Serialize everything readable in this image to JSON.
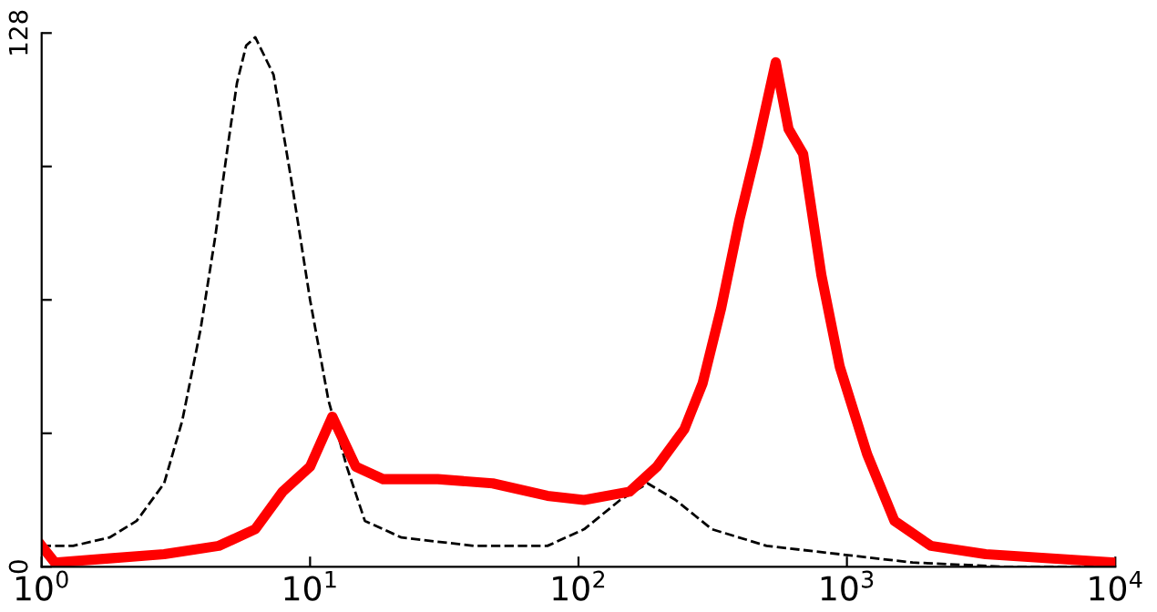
{
  "chart_data": {
    "type": "line",
    "log": "x",
    "xlim": [
      1,
      10000
    ],
    "ylim": [
      0,
      128
    ],
    "xticks": [
      {
        "value": 1,
        "label": "10$^{0}$"
      },
      {
        "value": 10,
        "label": "10$^{1}$"
      },
      {
        "value": 100,
        "label": "10$^{2}$"
      },
      {
        "value": 1000,
        "label": "10$^{3}$"
      },
      {
        "value": 10000,
        "label": "10$^{4}$"
      }
    ],
    "yticks": [
      0,
      {
        "value": 32,
        "label": null
      },
      {
        "value": 64,
        "label": null
      },
      {
        "value": 96,
        "label": null
      },
      128
    ],
    "grid": false,
    "legend": false,
    "marker": "none",
    "series": [
      {
        "color": "#000000",
        "line_style": "dashed",
        "x": [
          1,
          1.31,
          1.79,
          2.26,
          2.86,
          3.34,
          3.91,
          4.43,
          4.94,
          5.34,
          5.78,
          6.25,
          7.31,
          8.55,
          10,
          11.7,
          13.7,
          16.0,
          21.9,
          40.9,
          76.6,
          105,
          143,
          181,
          230,
          314,
          502,
          940,
          1758,
          3846,
          10000
        ],
        "values": [
          5,
          5,
          7,
          11,
          20,
          35,
          57,
          79,
          101,
          116,
          125,
          127,
          118,
          92,
          64,
          40,
          24,
          11,
          7,
          5,
          5,
          9,
          16,
          20,
          16,
          9,
          5,
          3,
          1,
          0,
          0
        ]
      },
      {
        "color": "#ff0000",
        "line_style": "solid",
        "x": [
          1,
          1.12,
          1.79,
          2.86,
          4.57,
          6.25,
          7.9,
          10,
          12.1,
          14.8,
          18.7,
          29.9,
          47.9,
          76.6,
          105,
          155,
          196,
          248,
          290,
          340,
          397,
          464,
          543,
          606,
          687,
          803,
          940,
          1189,
          1503,
          2056,
          3289,
          10000
        ],
        "values": [
          5,
          1,
          2,
          3,
          5,
          9,
          18,
          24,
          36,
          24,
          21,
          21,
          20,
          17,
          16,
          18,
          24,
          33,
          44,
          62,
          83,
          101,
          121,
          105,
          99,
          70,
          48,
          27,
          11,
          5,
          3,
          1
        ]
      }
    ]
  }
}
